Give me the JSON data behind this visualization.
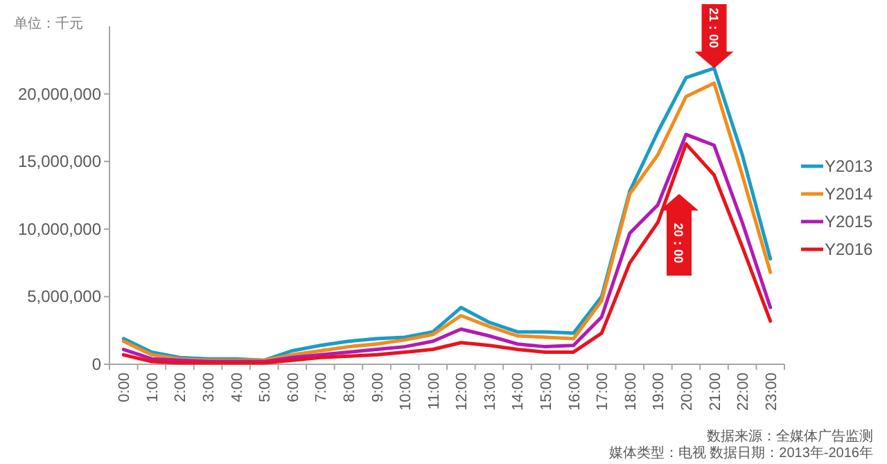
{
  "chart_data": {
    "type": "line",
    "categories": [
      "0:00",
      "1:00",
      "2:00",
      "3:00",
      "4:00",
      "5:00",
      "6:00",
      "7:00",
      "8:00",
      "9:00",
      "10:00",
      "11:00",
      "12:00",
      "13:00",
      "14:00",
      "15:00",
      "16:00",
      "17:00",
      "18:00",
      "19:00",
      "20:00",
      "21:00",
      "22:00",
      "23:00"
    ],
    "series": [
      {
        "name": "Y2013",
        "color": "#1a9cc8",
        "values": [
          1900000,
          900000,
          500000,
          400000,
          400000,
          300000,
          1000000,
          1400000,
          1700000,
          1900000,
          2000000,
          2400000,
          4200000,
          3100000,
          2400000,
          2400000,
          2300000,
          5000000,
          12800000,
          17200000,
          21200000,
          21900000,
          15500000,
          7800000
        ]
      },
      {
        "name": "Y2014",
        "color": "#f28c1c",
        "values": [
          1700000,
          700000,
          400000,
          300000,
          300000,
          300000,
          700000,
          1000000,
          1300000,
          1500000,
          1800000,
          2200000,
          3600000,
          2800000,
          2100000,
          2000000,
          1900000,
          4700000,
          12600000,
          15500000,
          19800000,
          20800000,
          14000000,
          6800000
        ]
      },
      {
        "name": "Y2015",
        "color": "#b31ab3",
        "values": [
          1100000,
          400000,
          300000,
          200000,
          200000,
          200000,
          500000,
          700000,
          900000,
          1100000,
          1300000,
          1700000,
          2600000,
          2100000,
          1500000,
          1300000,
          1400000,
          3500000,
          9700000,
          11800000,
          17000000,
          16200000,
          10500000,
          4200000
        ]
      },
      {
        "name": "Y2016",
        "color": "#e8141c",
        "values": [
          700000,
          200000,
          100000,
          100000,
          100000,
          100000,
          300000,
          500000,
          600000,
          700000,
          900000,
          1100000,
          1600000,
          1400000,
          1100000,
          900000,
          900000,
          2300000,
          7500000,
          10500000,
          16300000,
          14000000,
          8700000,
          3200000
        ]
      }
    ],
    "ylim": [
      0,
      25000000
    ],
    "yticks": [
      {
        "value": 0,
        "label": "0"
      },
      {
        "value": 5000000,
        "label": "5,000,000"
      },
      {
        "value": 10000000,
        "label": "10,000,000"
      },
      {
        "value": 15000000,
        "label": "15,000,000"
      },
      {
        "value": 20000000,
        "label": "20,000,000"
      }
    ],
    "legend": "right",
    "grid": false,
    "annotations": [
      "单位：千元",
      {
        "text": "21：00",
        "x": "21:00",
        "y": 21900000
      },
      "20：00",
      "数据来源：全媒体广告监测",
      "媒体类型：电视  数据日期：2013年-2016年"
    ]
  }
}
